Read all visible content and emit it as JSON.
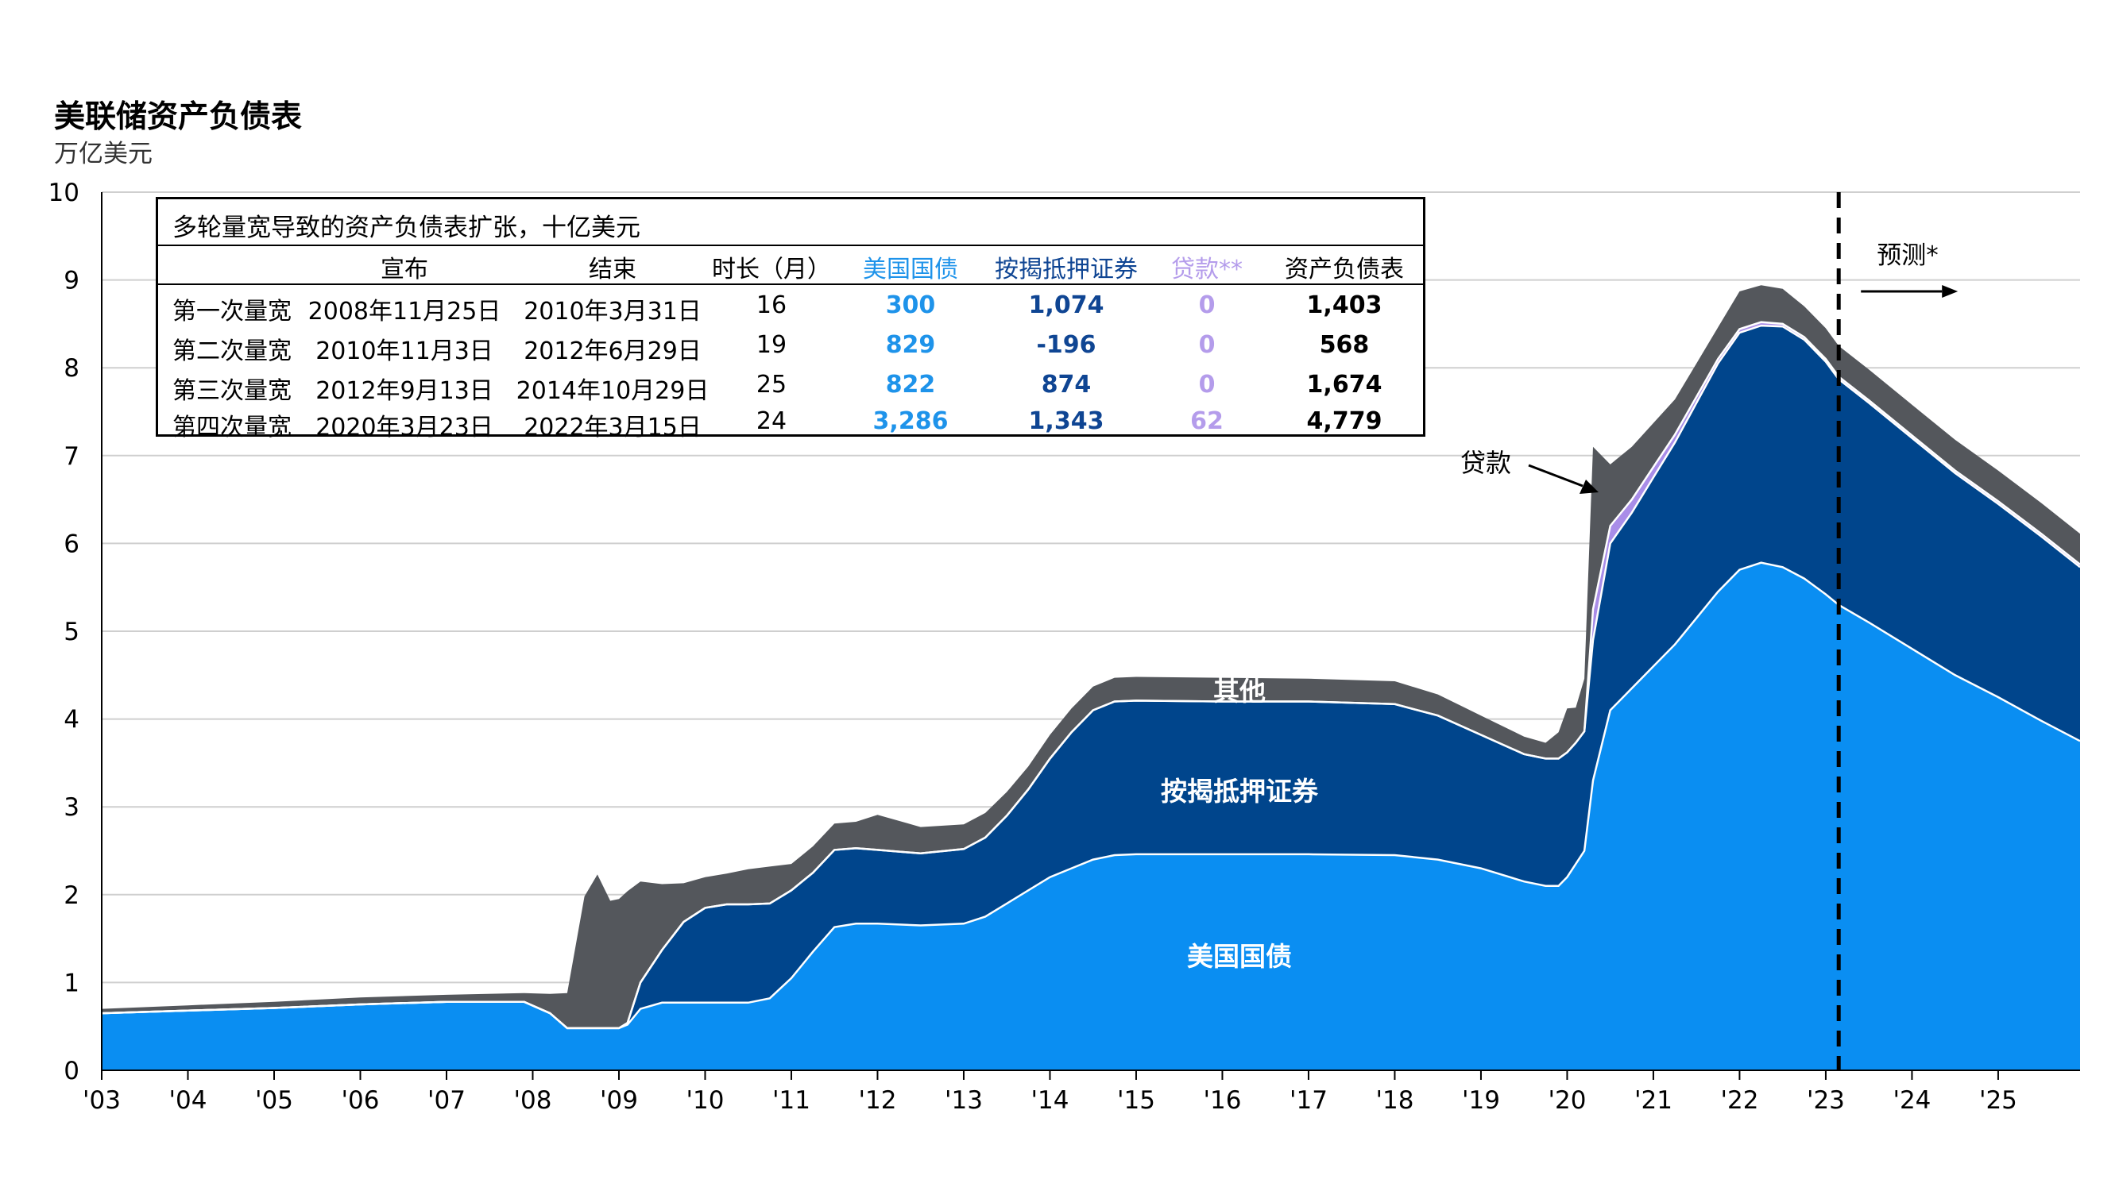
{
  "title": "美联储资产负债表",
  "subtitle": "万亿美元",
  "colors": {
    "treasuries": "#0a8ef2",
    "mbs": "#00458c",
    "loans": "#a98de8",
    "other": "#54575c",
    "grid": "#cfcfcf"
  },
  "table": {
    "title": "多轮量宽导致的资产负债表扩张，十亿美元",
    "headers": [
      "宣布",
      "结束",
      "时长（月）",
      "美国国债",
      "按揭抵押证券",
      "贷款**",
      "资产负债表"
    ],
    "rows": [
      {
        "name": "第一次量宽",
        "announced": "2008年11月25日",
        "ended": "2010年3月31日",
        "months": "16",
        "treasuries": "300",
        "mbs": "1,074",
        "loans": "0",
        "total": "1,403"
      },
      {
        "name": "第二次量宽",
        "announced": "2010年11月3日",
        "ended": "2012年6月29日",
        "months": "19",
        "treasuries": "829",
        "mbs": "-196",
        "loans": "0",
        "total": "568"
      },
      {
        "name": "第三次量宽",
        "announced": "2012年9月13日",
        "ended": "2014年10月29日",
        "months": "25",
        "treasuries": "822",
        "mbs": "874",
        "loans": "0",
        "total": "1,674"
      },
      {
        "name": "第四次量宽",
        "announced": "2020年3月23日",
        "ended": "2022年3月15日",
        "months": "24",
        "treasuries": "3,286",
        "mbs": "1,343",
        "loans": "62",
        "total": "4,779"
      }
    ]
  },
  "chart_data": {
    "type": "area",
    "stacked": true,
    "ylim": [
      0,
      10
    ],
    "xlim": [
      2003,
      2025.95
    ],
    "yticks": [
      "0",
      "1",
      "2",
      "3",
      "4",
      "5",
      "6",
      "7",
      "8",
      "9",
      "10"
    ],
    "xticks": [
      "'03",
      "'04",
      "'05",
      "'06",
      "'07",
      "'08",
      "'09",
      "'10",
      "'11",
      "'12",
      "'13",
      "'14",
      "'15",
      "'16",
      "'17",
      "'18",
      "'19",
      "'20",
      "'21",
      "'22",
      "'23",
      "'24",
      "'25"
    ],
    "grid": true,
    "forecast_start": 2023.15,
    "annotations": {
      "forecast": "预测*",
      "loans": "贷款",
      "other": "其他",
      "mbs": "按揭抵押证券",
      "treasuries": "美国国债"
    },
    "x": [
      2003.0,
      2004.0,
      2005.0,
      2006.0,
      2007.0,
      2007.9,
      2008.2,
      2008.4,
      2008.6,
      2008.75,
      2008.9,
      2009.0,
      2009.1,
      2009.25,
      2009.5,
      2009.75,
      2010.0,
      2010.25,
      2010.5,
      2010.75,
      2011.0,
      2011.25,
      2011.5,
      2011.75,
      2012.0,
      2012.5,
      2013.0,
      2013.25,
      2013.5,
      2013.75,
      2014.0,
      2014.25,
      2014.5,
      2014.75,
      2015.0,
      2016.0,
      2017.0,
      2018.0,
      2018.5,
      2019.0,
      2019.5,
      2019.75,
      2019.9,
      2020.0,
      2020.1,
      2020.2,
      2020.3,
      2020.5,
      2020.75,
      2021.0,
      2021.25,
      2021.5,
      2021.75,
      2022.0,
      2022.25,
      2022.5,
      2022.75,
      2023.0,
      2023.15,
      2023.5,
      2024.0,
      2024.5,
      2025.0,
      2025.5,
      2025.95
    ],
    "series": [
      {
        "name": "美国国债",
        "values": [
          0.65,
          0.68,
          0.71,
          0.75,
          0.78,
          0.78,
          0.65,
          0.48,
          0.48,
          0.48,
          0.48,
          0.48,
          0.52,
          0.7,
          0.77,
          0.77,
          0.77,
          0.77,
          0.77,
          0.82,
          1.05,
          1.35,
          1.63,
          1.67,
          1.67,
          1.65,
          1.67,
          1.75,
          1.9,
          2.05,
          2.2,
          2.3,
          2.4,
          2.45,
          2.46,
          2.46,
          2.46,
          2.45,
          2.4,
          2.3,
          2.15,
          2.1,
          2.1,
          2.2,
          2.35,
          2.5,
          3.3,
          4.1,
          4.35,
          4.6,
          4.85,
          5.15,
          5.45,
          5.7,
          5.78,
          5.73,
          5.6,
          5.42,
          5.3,
          5.1,
          4.8,
          4.5,
          4.25,
          3.98,
          3.75
        ]
      },
      {
        "name": "按揭抵押证券",
        "values": [
          0,
          0,
          0,
          0,
          0,
          0,
          0,
          0,
          0,
          0,
          0,
          0,
          0.02,
          0.3,
          0.6,
          0.92,
          1.08,
          1.12,
          1.12,
          1.08,
          1.0,
          0.9,
          0.88,
          0.86,
          0.84,
          0.82,
          0.85,
          0.9,
          1.0,
          1.15,
          1.35,
          1.55,
          1.7,
          1.75,
          1.75,
          1.74,
          1.74,
          1.72,
          1.64,
          1.52,
          1.45,
          1.45,
          1.45,
          1.42,
          1.38,
          1.36,
          1.6,
          1.9,
          2.0,
          2.15,
          2.3,
          2.45,
          2.6,
          2.7,
          2.7,
          2.74,
          2.72,
          2.65,
          2.57,
          2.5,
          2.4,
          2.3,
          2.2,
          2.1,
          1.98
        ]
      },
      {
        "name": "贷款",
        "values": [
          0,
          0,
          0,
          0,
          0,
          0,
          0,
          0,
          0,
          0,
          0,
          0,
          0,
          0,
          0,
          0,
          0,
          0,
          0,
          0,
          0,
          0,
          0,
          0,
          0,
          0,
          0,
          0,
          0,
          0,
          0,
          0,
          0,
          0,
          0,
          0,
          0,
          0,
          0,
          0,
          0,
          0,
          0,
          0,
          0,
          0,
          0.35,
          0.2,
          0.15,
          0.12,
          0.09,
          0.07,
          0.05,
          0.04,
          0.04,
          0.03,
          0.03,
          0.03,
          0.03,
          0.03,
          0.03,
          0.03,
          0.03,
          0.03,
          0.03
        ]
      },
      {
        "name": "其他",
        "values": [
          0.05,
          0.06,
          0.07,
          0.08,
          0.08,
          0.1,
          0.22,
          0.4,
          1.5,
          1.75,
          1.45,
          1.47,
          1.5,
          1.15,
          0.75,
          0.44,
          0.35,
          0.35,
          0.4,
          0.42,
          0.3,
          0.3,
          0.3,
          0.3,
          0.4,
          0.3,
          0.28,
          0.28,
          0.27,
          0.26,
          0.27,
          0.27,
          0.27,
          0.27,
          0.27,
          0.27,
          0.26,
          0.26,
          0.24,
          0.22,
          0.2,
          0.18,
          0.3,
          0.5,
          0.4,
          0.6,
          1.85,
          0.7,
          0.6,
          0.5,
          0.4,
          0.38,
          0.36,
          0.43,
          0.42,
          0.4,
          0.35,
          0.35,
          0.35,
          0.35,
          0.35,
          0.35,
          0.35,
          0.35,
          0.35
        ]
      }
    ]
  }
}
